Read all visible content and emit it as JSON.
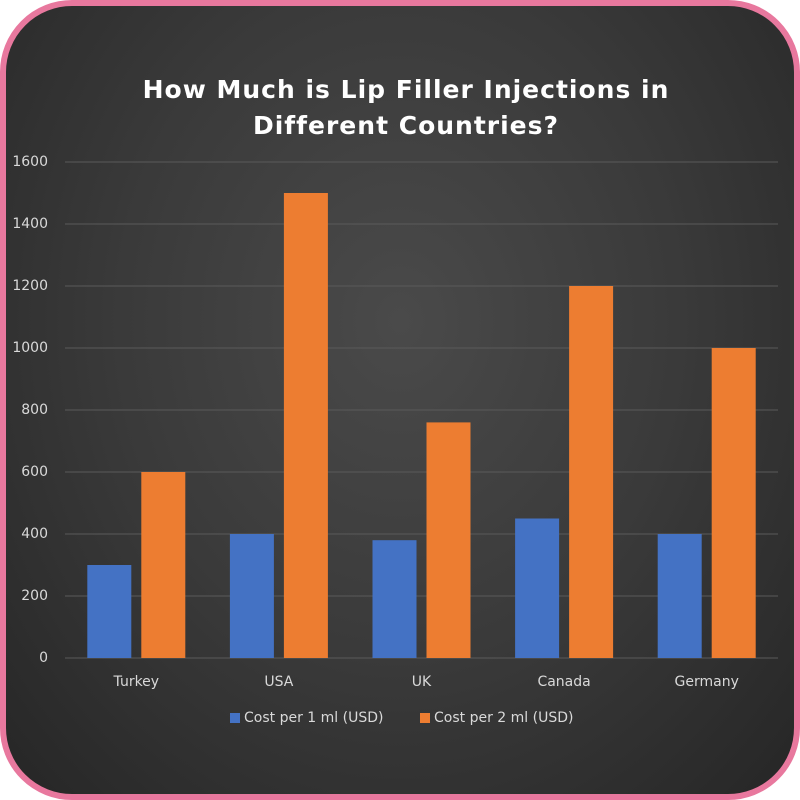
{
  "chart_data": {
    "type": "bar",
    "title": "How Much is Lip Filler Injections in Different Countries?",
    "categories": [
      "Turkey",
      "USA",
      "UK",
      "Canada",
      "Germany"
    ],
    "series": [
      {
        "name": "Cost per 1 ml (USD)",
        "color": "#4472c4",
        "values": [
          300,
          400,
          380,
          450,
          400
        ]
      },
      {
        "name": "Cost per 2 ml (USD)",
        "color": "#ed7d31",
        "values": [
          600,
          1500,
          760,
          1200,
          1000
        ]
      }
    ],
    "ylim": [
      0,
      1600
    ],
    "yticks": [
      0,
      200,
      400,
      600,
      800,
      1000,
      1200,
      1400,
      1600
    ],
    "grid": true,
    "legend": "bottom"
  }
}
